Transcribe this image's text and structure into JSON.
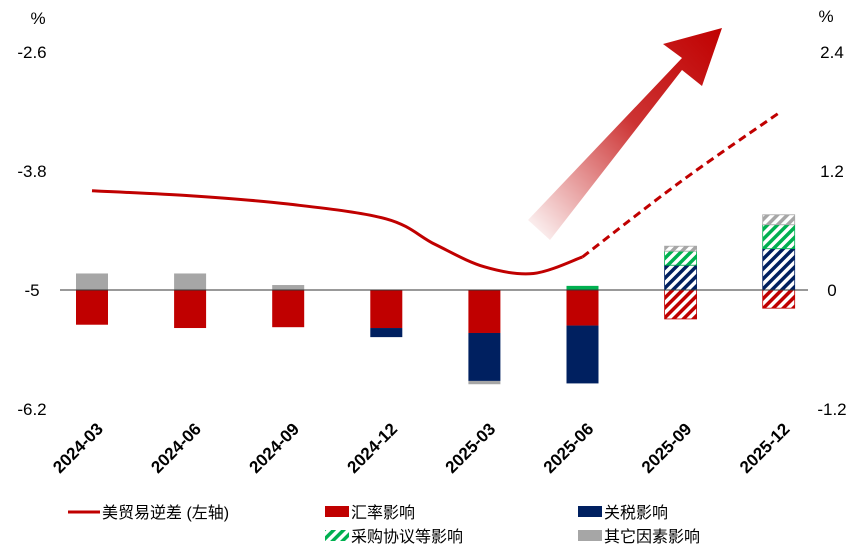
{
  "chart_data": {
    "type": "bar",
    "categories": [
      "2024-03",
      "2024-06",
      "2024-09",
      "2024-12",
      "2025-03",
      "2025-06",
      "2025-09",
      "2025-12"
    ],
    "left_axis": {
      "unit": "%",
      "ylim": [
        -6.2,
        -2.6
      ],
      "ticks": [
        "-2.6",
        "-3.8",
        "-5",
        "-6.2"
      ]
    },
    "right_axis": {
      "unit": "%",
      "ylim": [
        -1.2,
        2.4
      ],
      "ticks": [
        "2.4",
        "1.2",
        "0",
        "-1.2"
      ]
    },
    "forecast_from_index": 6,
    "series": [
      {
        "name": "汇率影响",
        "color": "#C00000",
        "values": [
          -0.42,
          -0.46,
          -0.45,
          -0.46,
          -0.52,
          -0.43,
          -0.35,
          -0.22
        ]
      },
      {
        "name": "关税影响",
        "color": "#002060",
        "values": [
          0,
          0,
          0,
          -0.11,
          -0.58,
          -0.7,
          0.3,
          0.5
        ]
      },
      {
        "name": "采购协议等影响",
        "color": "#00B050",
        "values": [
          0,
          0,
          0,
          0,
          0,
          0.05,
          0.17,
          0.29
        ]
      },
      {
        "name": "其它因素影响",
        "color": "#A6A6A6",
        "values": [
          0.2,
          0.2,
          0.06,
          0,
          -0.04,
          0,
          0.06,
          0.12
        ]
      }
    ],
    "line": {
      "name": "美贸易逆差 (左轴)",
      "color": "#C00000",
      "axis": "left",
      "points": [
        [
          0,
          -3.8
        ],
        [
          1,
          -3.86
        ],
        [
          2,
          -3.96
        ],
        [
          3,
          -4.14
        ],
        [
          3.5,
          -4.45
        ],
        [
          4,
          -4.72
        ],
        [
          4.5,
          -4.8
        ],
        [
          5,
          -4.6
        ],
        [
          6,
          -3.69
        ],
        [
          7,
          -2.86
        ]
      ],
      "solid_until_index": 5
    },
    "legend": [
      "美贸易逆差 (左轴)",
      "汇率影响",
      "关税影响",
      "采购协议等影响",
      "其它因素影响"
    ],
    "legend_position": "bottom"
  }
}
